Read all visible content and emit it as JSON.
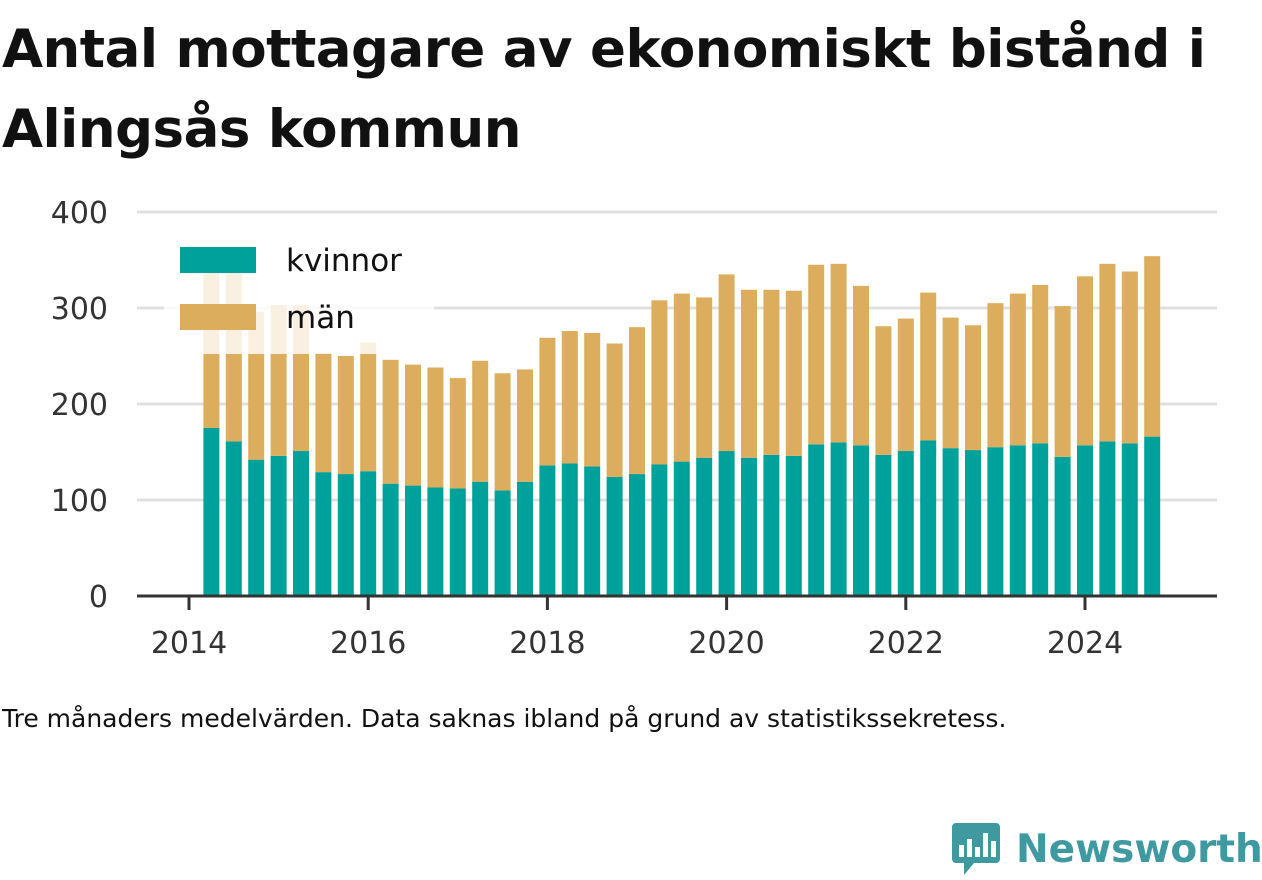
{
  "title": "Antal mottagare av ekonomiskt bistånd i Alingsås kommun",
  "caption": "Tre månaders medelvärden. Data saknas ibland på grund av statistikssekretess.",
  "brand": {
    "name": "Newsworthy"
  },
  "colors": {
    "kvinnor": "#00a19a",
    "man": "#dbad5c",
    "grid": "#e0e0e0",
    "axis": "#333333",
    "brand": "#3e9aa0"
  },
  "chart_data": {
    "type": "bar",
    "stacked": true,
    "x": [
      "2014-Q2",
      "2014-Q3",
      "2014-Q4",
      "2015-Q1",
      "2015-Q2",
      "2015-Q3",
      "2015-Q4",
      "2016-Q1",
      "2016-Q2",
      "2016-Q3",
      "2016-Q4",
      "2017-Q1",
      "2017-Q2",
      "2017-Q3",
      "2017-Q4",
      "2018-Q1",
      "2018-Q2",
      "2018-Q3",
      "2018-Q4",
      "2019-Q1",
      "2019-Q2",
      "2019-Q3",
      "2019-Q4",
      "2020-Q1",
      "2020-Q2",
      "2020-Q3",
      "2020-Q4",
      "2021-Q1",
      "2021-Q2",
      "2021-Q3",
      "2021-Q4",
      "2022-Q1",
      "2022-Q2",
      "2022-Q3",
      "2022-Q4",
      "2023-Q1",
      "2023-Q2",
      "2023-Q3",
      "2023-Q4",
      "2024-Q1",
      "2024-Q2",
      "2024-Q3",
      "2024-Q4"
    ],
    "series": [
      {
        "name": "kvinnor",
        "values": [
          175,
          161,
          142,
          146,
          151,
          129,
          127,
          130,
          117,
          115,
          113,
          112,
          119,
          110,
          119,
          136,
          138,
          135,
          124,
          127,
          137,
          140,
          144,
          151,
          144,
          147,
          146,
          158,
          160,
          157,
          147,
          151,
          162,
          154,
          152,
          155,
          157,
          159,
          145,
          157,
          161,
          159,
          166
        ]
      },
      {
        "name": "män",
        "values": [
          162,
          176,
          154,
          157,
          152,
          124,
          123,
          134,
          129,
          126,
          125,
          115,
          126,
          122,
          117,
          133,
          138,
          139,
          139,
          153,
          171,
          175,
          167,
          184,
          175,
          172,
          172,
          187,
          186,
          166,
          134,
          138,
          154,
          136,
          130,
          150,
          158,
          165,
          157,
          176,
          185,
          179,
          188
        ]
      }
    ],
    "ylim": [
      0,
      400
    ],
    "yticks": [
      0,
      100,
      200,
      300,
      400
    ],
    "xticks": [
      "2014",
      "2016",
      "2018",
      "2020",
      "2022",
      "2024"
    ],
    "xlabel": "",
    "ylabel": "",
    "grid": true,
    "legend": "top-left"
  }
}
